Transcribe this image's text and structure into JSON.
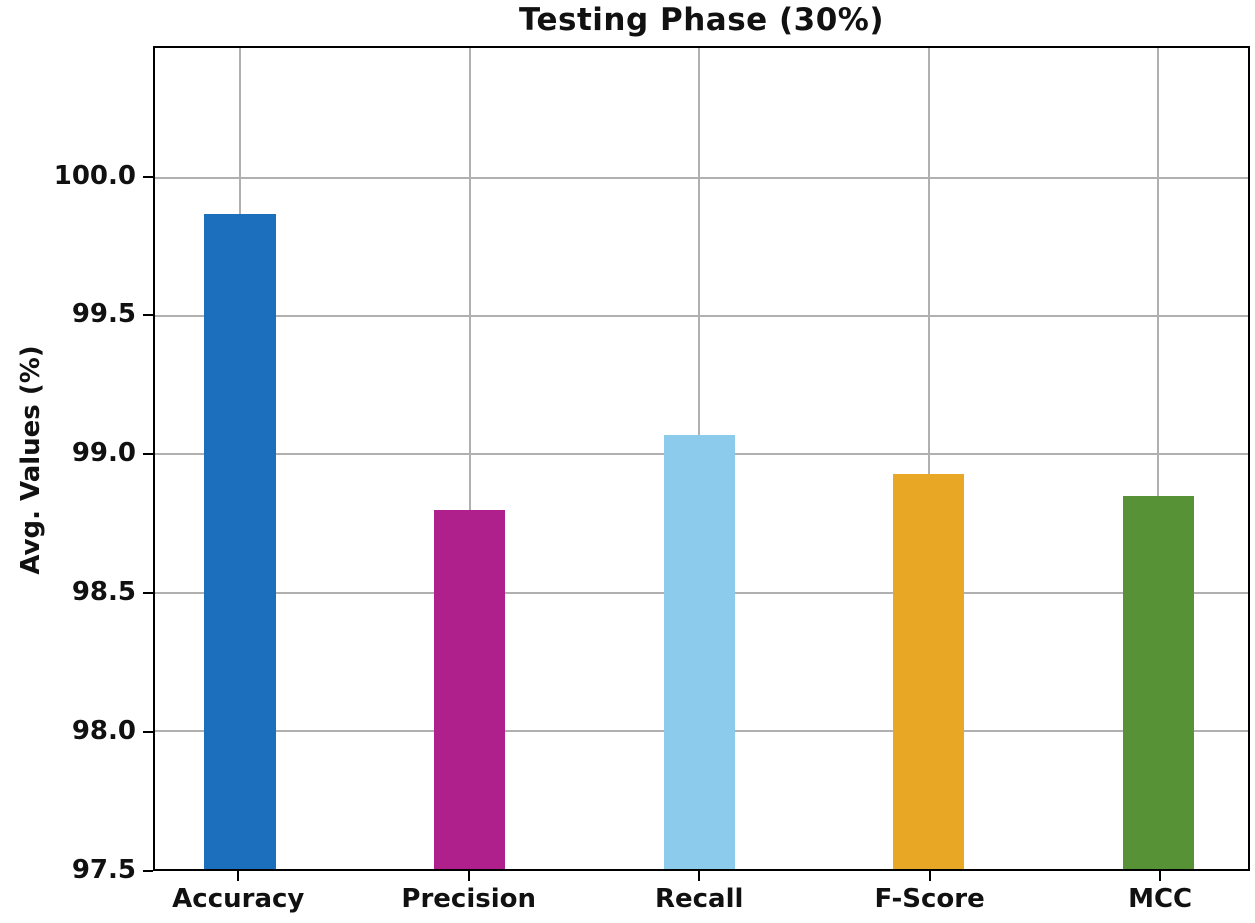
{
  "title": "Testing Phase (30%)",
  "chart_data": {
    "type": "bar",
    "title": "Testing Phase (30%)",
    "xlabel": "",
    "ylabel": "Avg. Values (%)",
    "categories": [
      "Accuracy",
      "Precision",
      "Recall",
      "F-Score",
      "MCC"
    ],
    "values": [
      99.87,
      98.8,
      99.07,
      98.93,
      98.85
    ],
    "bar_colors": [
      "#1b6fbc",
      "#b0208c",
      "#8ccbec",
      "#e8a825",
      "#579236"
    ],
    "ylim": [
      97.5,
      100.47
    ],
    "yticks": [
      97.5,
      98.0,
      98.5,
      99.0,
      99.5,
      100.0
    ],
    "ytick_labels": [
      "97.5",
      "98.0",
      "98.5",
      "99.0",
      "99.5",
      "100.0"
    ],
    "xlim": [
      -0.37,
      4.39
    ],
    "bar_width_units": 0.31,
    "grid": true,
    "gridline_color": "#b0b0b0",
    "frame_color": "#000000",
    "background_color": "#ffffff",
    "legend": "none"
  }
}
